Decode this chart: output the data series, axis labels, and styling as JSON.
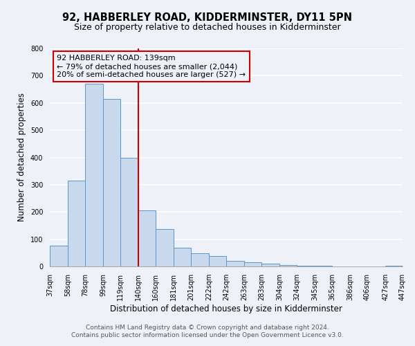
{
  "title": "92, HABBERLEY ROAD, KIDDERMINSTER, DY11 5PN",
  "subtitle": "Size of property relative to detached houses in Kidderminster",
  "xlabel": "Distribution of detached houses by size in Kidderminster",
  "ylabel": "Number of detached properties",
  "bin_edges": [
    37,
    58,
    78,
    99,
    119,
    140,
    160,
    181,
    201,
    222,
    242,
    263,
    283,
    304,
    324,
    345,
    365,
    386,
    406,
    427,
    447
  ],
  "bin_counts": [
    75,
    315,
    670,
    615,
    400,
    205,
    137,
    68,
    47,
    37,
    20,
    14,
    11,
    5,
    3,
    2,
    1,
    1,
    1,
    2
  ],
  "bar_facecolor": "#c8d8ed",
  "bar_edgecolor": "#5a96c8",
  "vline_x": 140,
  "vline_color": "#cc0000",
  "annotation_title": "92 HABBERLEY ROAD: 139sqm",
  "annotation_line1": "← 79% of detached houses are smaller (2,044)",
  "annotation_line2": "20% of semi-detached houses are larger (527) →",
  "annotation_box_color": "#cc0000",
  "ylim": [
    0,
    800
  ],
  "yticks": [
    0,
    100,
    200,
    300,
    400,
    500,
    600,
    700,
    800
  ],
  "tick_labels": [
    "37sqm",
    "58sqm",
    "78sqm",
    "99sqm",
    "119sqm",
    "140sqm",
    "160sqm",
    "181sqm",
    "201sqm",
    "222sqm",
    "242sqm",
    "263sqm",
    "283sqm",
    "304sqm",
    "324sqm",
    "345sqm",
    "365sqm",
    "386sqm",
    "406sqm",
    "427sqm",
    "447sqm"
  ],
  "footer_line1": "Contains HM Land Registry data © Crown copyright and database right 2024.",
  "footer_line2": "Contains public sector information licensed under the Open Government Licence v3.0.",
  "background_color": "#eef2f8",
  "grid_color": "#ffffff",
  "title_fontsize": 10.5,
  "subtitle_fontsize": 9,
  "axis_label_fontsize": 8.5,
  "tick_fontsize": 7,
  "footer_fontsize": 6.5,
  "annotation_fontsize": 8
}
